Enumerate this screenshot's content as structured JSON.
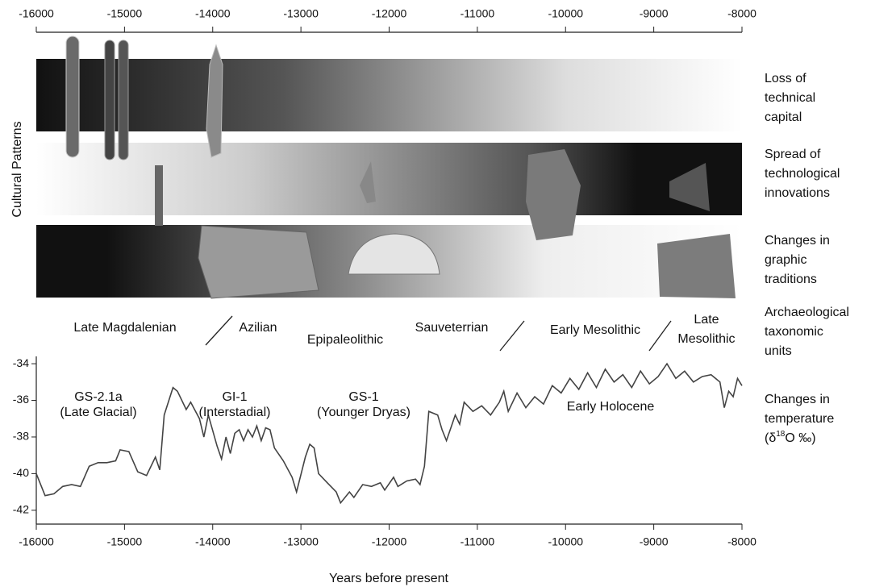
{
  "chart_data": {
    "type": "line",
    "color": "#444444",
    "xlabel": "Years before present",
    "ylabel": "Cultural Patterns",
    "xlim": [
      -16000,
      -8000
    ],
    "xticks": [
      -16000,
      -15000,
      -14000,
      -13000,
      -12000,
      -11000,
      -10000,
      -9000,
      -8000
    ],
    "ylim": [
      -42.8,
      -33.6
    ],
    "yticks": [
      -42,
      -40,
      -38,
      -36,
      -34
    ],
    "x": [
      -16000,
      -15900,
      -15800,
      -15700,
      -15600,
      -15500,
      -15400,
      -15300,
      -15200,
      -15100,
      -15050,
      -14950,
      -14850,
      -14750,
      -14650,
      -14600,
      -14550,
      -14450,
      -14400,
      -14300,
      -14250,
      -14150,
      -14100,
      -14050,
      -13950,
      -13900,
      -13850,
      -13800,
      -13750,
      -13700,
      -13650,
      -13600,
      -13550,
      -13500,
      -13450,
      -13400,
      -13350,
      -13300,
      -13200,
      -13100,
      -13050,
      -12950,
      -12900,
      -12850,
      -12800,
      -12700,
      -12600,
      -12550,
      -12450,
      -12400,
      -12300,
      -12200,
      -12100,
      -12050,
      -11950,
      -11900,
      -11800,
      -11700,
      -11650,
      -11600,
      -11550,
      -11450,
      -11400,
      -11350,
      -11250,
      -11200,
      -11150,
      -11050,
      -10950,
      -10850,
      -10750,
      -10700,
      -10650,
      -10550,
      -10450,
      -10350,
      -10250,
      -10150,
      -10050,
      -9950,
      -9850,
      -9750,
      -9650,
      -9550,
      -9450,
      -9350,
      -9250,
      -9150,
      -9050,
      -8950,
      -8850,
      -8750,
      -8650,
      -8550,
      -8450,
      -8350,
      -8250,
      -8200,
      -8150,
      -8100,
      -8050,
      -8000
    ],
    "values": [
      -40.0,
      -41.2,
      -41.1,
      -40.7,
      -40.6,
      -40.7,
      -39.6,
      -39.4,
      -39.4,
      -39.3,
      -38.7,
      -38.8,
      -39.9,
      -40.1,
      -39.1,
      -39.8,
      -36.8,
      -35.3,
      -35.5,
      -36.5,
      -36.1,
      -37.0,
      -38.0,
      -36.8,
      -38.5,
      -39.2,
      -38.0,
      -38.9,
      -37.8,
      -37.6,
      -38.2,
      -37.6,
      -38.0,
      -37.4,
      -38.2,
      -37.5,
      -37.6,
      -38.6,
      -39.3,
      -40.2,
      -41.0,
      -39.1,
      -38.4,
      -38.6,
      -40.0,
      -40.5,
      -41.0,
      -41.6,
      -41.0,
      -41.3,
      -40.6,
      -40.7,
      -40.5,
      -40.9,
      -40.2,
      -40.7,
      -40.4,
      -40.3,
      -40.6,
      -39.6,
      -36.6,
      -36.8,
      -37.6,
      -38.2,
      -36.8,
      -37.3,
      -36.1,
      -36.6,
      -36.3,
      -36.8,
      -36.1,
      -35.5,
      -36.6,
      -35.6,
      -36.4,
      -35.8,
      -36.2,
      -35.2,
      -35.6,
      -34.8,
      -35.4,
      -34.5,
      -35.3,
      -34.3,
      -35.0,
      -34.6,
      -35.3,
      -34.4,
      -35.1,
      -34.7,
      -34.0,
      -34.8,
      -34.4,
      -35.0,
      -34.7,
      -34.6,
      -35.0,
      -36.4,
      -35.5,
      -35.8,
      -34.8,
      -35.2
    ],
    "climate_labels": [
      [
        "GS-2.1a",
        "(Late Glacial)"
      ],
      [
        "GI-1",
        "(Interstadial)"
      ],
      [
        "GS-1",
        "(Younger Dryas)"
      ],
      [
        "Early Holocene"
      ]
    ],
    "archaeological_units": [
      [
        "Late Magdalenian"
      ],
      [
        "Azilian"
      ],
      [
        "Epipaleolithic"
      ],
      [
        "Sauveterrian"
      ],
      [
        "Early Mesolithic"
      ],
      [
        "Late",
        "Mesolithic"
      ]
    ],
    "row_labels": [
      [
        "Loss of",
        "technical",
        "capital"
      ],
      [
        "Spread of",
        "technological",
        "innovations"
      ],
      [
        "Changes in",
        "graphic",
        "traditions"
      ],
      [
        "Archaeological",
        "taxonomic",
        "units"
      ],
      [
        "Changes in",
        "temperature"
      ]
    ],
    "temperature_unit": [
      "(δ",
      "18",
      "O ‰)"
    ]
  }
}
